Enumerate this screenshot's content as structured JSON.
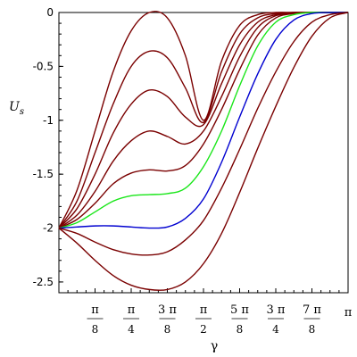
{
  "chart_data": {
    "type": "line",
    "xlabel": "γ",
    "ylabel_main": "U",
    "ylabel_sub": "s",
    "xlim": [
      0,
      3.14159
    ],
    "ylim": [
      -2.6,
      0
    ],
    "y_ticks": [
      {
        "value": 0,
        "label": "0"
      },
      {
        "value": -0.5,
        "label": "-0.5"
      },
      {
        "value": -1,
        "label": "-1"
      },
      {
        "value": -1.5,
        "label": "-1.5"
      },
      {
        "value": -2,
        "label": "-2"
      },
      {
        "value": -2.5,
        "label": "-2.5"
      }
    ],
    "x_ticks": [
      {
        "value": 0.3927,
        "num": "π",
        "den": "8"
      },
      {
        "value": 0.7854,
        "num": "π",
        "den": "4"
      },
      {
        "value": 1.1781,
        "num": "3 π",
        "den": "8"
      },
      {
        "value": 1.5708,
        "num": "π",
        "den": "2"
      },
      {
        "value": 1.9635,
        "num": "5 π",
        "den": "8"
      },
      {
        "value": 2.3562,
        "num": "3 π",
        "den": "4"
      },
      {
        "value": 2.7489,
        "num": "7 π",
        "den": "8"
      },
      {
        "value": 3.1416,
        "num": "π",
        "den": ""
      }
    ],
    "grid": false,
    "colors": {
      "dark_red": "#7a0000",
      "green": "#19e619",
      "blue": "#0000d0"
    },
    "x": [
      0,
      0.1963,
      0.3927,
      0.589,
      0.7854,
      0.9817,
      1.1781,
      1.3744,
      1.5708,
      1.7671,
      1.9635,
      2.1598,
      2.3562,
      2.5525,
      2.7489,
      2.9452,
      3.1416
    ],
    "series": [
      {
        "color": "dark_red",
        "values": [
          -2.0,
          -1.65,
          -1.1,
          -0.55,
          -0.17,
          0.0,
          -0.05,
          -0.4,
          -1.0,
          -0.45,
          -0.12,
          -0.02,
          0.0,
          0.0,
          0.0,
          0.0,
          0.0
        ]
      },
      {
        "color": "dark_red",
        "values": [
          -2.0,
          -1.75,
          -1.3,
          -0.85,
          -0.5,
          -0.36,
          -0.42,
          -0.7,
          -1.02,
          -0.55,
          -0.2,
          -0.05,
          -0.01,
          0.0,
          0.0,
          0.0,
          0.0
        ]
      },
      {
        "color": "dark_red",
        "values": [
          -2.0,
          -1.82,
          -1.5,
          -1.12,
          -0.85,
          -0.72,
          -0.78,
          -0.97,
          -1.04,
          -0.66,
          -0.3,
          -0.09,
          -0.02,
          0.0,
          0.0,
          0.0,
          0.0
        ]
      },
      {
        "color": "dark_red",
        "values": [
          -2.0,
          -1.88,
          -1.66,
          -1.38,
          -1.19,
          -1.1,
          -1.15,
          -1.22,
          -1.1,
          -0.78,
          -0.41,
          -0.14,
          -0.03,
          -0.01,
          0.0,
          0.0,
          0.0
        ]
      },
      {
        "color": "dark_red",
        "values": [
          -2.0,
          -1.92,
          -1.77,
          -1.59,
          -1.49,
          -1.46,
          -1.47,
          -1.42,
          -1.22,
          -0.9,
          -0.53,
          -0.21,
          -0.05,
          -0.01,
          0.0,
          0.0,
          0.0
        ]
      },
      {
        "color": "green",
        "values": [
          -2.0,
          -1.95,
          -1.85,
          -1.75,
          -1.7,
          -1.69,
          -1.68,
          -1.63,
          -1.43,
          -1.1,
          -0.68,
          -0.31,
          -0.09,
          -0.02,
          0.0,
          0.0,
          0.0
        ]
      },
      {
        "color": "blue",
        "values": [
          -2.0,
          -1.99,
          -1.98,
          -1.98,
          -1.99,
          -2.0,
          -1.99,
          -1.91,
          -1.73,
          -1.39,
          -0.97,
          -0.57,
          -0.25,
          -0.07,
          -0.01,
          0.0,
          0.0
        ]
      },
      {
        "color": "dark_red",
        "values": [
          -2.0,
          -2.05,
          -2.13,
          -2.2,
          -2.24,
          -2.25,
          -2.22,
          -2.11,
          -1.93,
          -1.63,
          -1.27,
          -0.89,
          -0.55,
          -0.27,
          -0.09,
          -0.02,
          0.0
        ]
      },
      {
        "color": "dark_red",
        "values": [
          -2.0,
          -2.14,
          -2.3,
          -2.44,
          -2.53,
          -2.57,
          -2.57,
          -2.5,
          -2.33,
          -2.05,
          -1.67,
          -1.26,
          -0.87,
          -0.51,
          -0.22,
          -0.05,
          0.0
        ]
      }
    ]
  }
}
